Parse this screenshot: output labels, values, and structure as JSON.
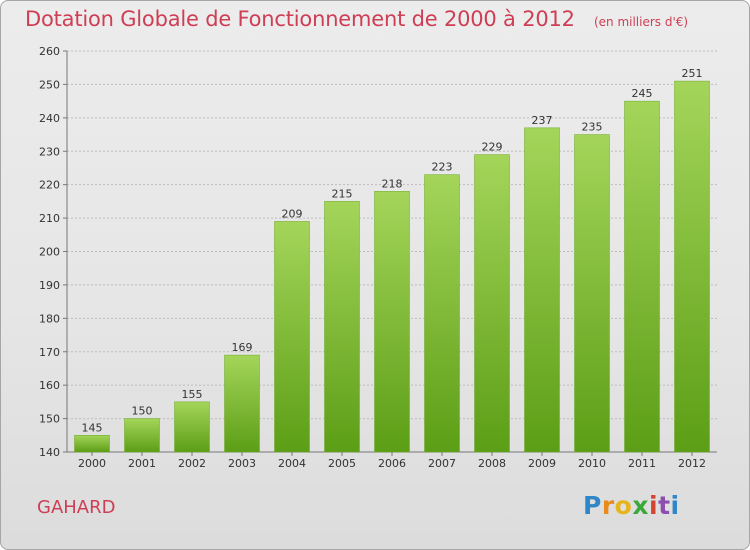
{
  "header": {
    "title": "Dotation Globale de Fonctionnement de 2000 à 2012",
    "unit": "(en milliers d'€)"
  },
  "footer": {
    "commune": "GAHARD",
    "logo_text": "Proxiti"
  },
  "colors": {
    "title": "#ce3e55",
    "bar_top": "#a4d55a",
    "bar_bottom": "#5c9e16"
  },
  "chart_data": {
    "type": "bar",
    "title": "Dotation Globale de Fonctionnement de 2000 à 2012",
    "subtitle": "(en milliers d'€)",
    "xlabel": "",
    "ylabel": "",
    "categories": [
      "2000",
      "2001",
      "2002",
      "2003",
      "2004",
      "2005",
      "2006",
      "2007",
      "2008",
      "2009",
      "2010",
      "2011",
      "2012"
    ],
    "values": [
      145,
      150,
      155,
      169,
      209,
      215,
      218,
      223,
      229,
      237,
      235,
      245,
      251
    ],
    "ylim": [
      140,
      260
    ],
    "yticks": [
      140,
      150,
      160,
      170,
      180,
      190,
      200,
      210,
      220,
      230,
      240,
      250,
      260
    ],
    "grid": true,
    "legend": "none"
  }
}
